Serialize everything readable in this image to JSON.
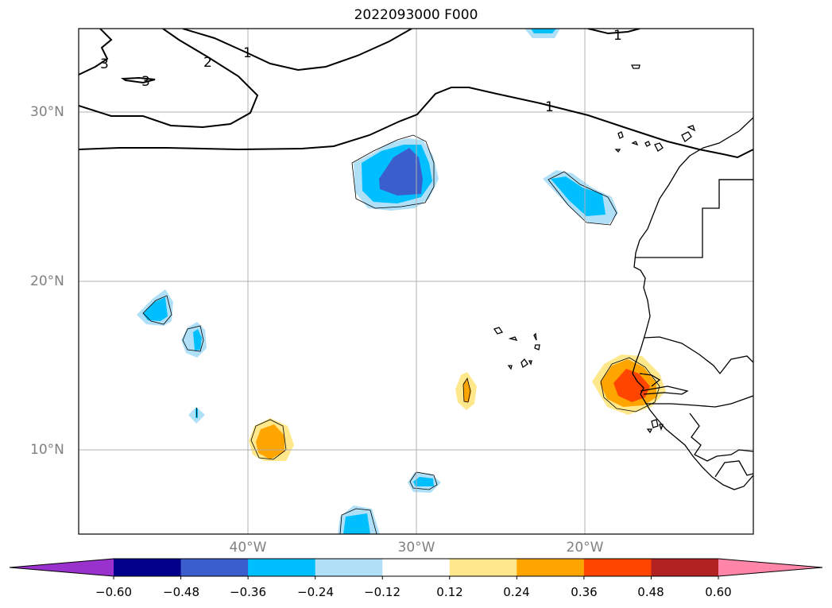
{
  "title": "2022093000 F000",
  "map": {
    "lat_labels": [
      "30°N",
      "20°N",
      "10°N"
    ],
    "lon_labels": [
      "40°W",
      "30°W",
      "20°W"
    ],
    "contour_labels": [
      "3",
      "2",
      "1",
      "1",
      "1",
      "3"
    ]
  },
  "colorbar": {
    "ticks": [
      "−0.60",
      "−0.48",
      "−0.36",
      "−0.24",
      "−0.12",
      "0.12",
      "0.24",
      "0.36",
      "0.48",
      "0.60"
    ],
    "colors": {
      "under": "#9932cc",
      "bins": [
        "#00008b",
        "#3a5fcd",
        "#00bfff",
        "#afe0f7",
        "#ffffff",
        "#ffe88c",
        "#ffa500",
        "#ff4500",
        "#b22222"
      ],
      "over": "#ff86a9"
    }
  },
  "colors": {
    "positive_strong": "#ff4500",
    "positive_mid": "#ffa500",
    "positive_weak": "#ffe88c",
    "negative_strong": "#3a5fcd",
    "negative_mid": "#00bfff",
    "negative_weak": "#afe0f7"
  }
}
